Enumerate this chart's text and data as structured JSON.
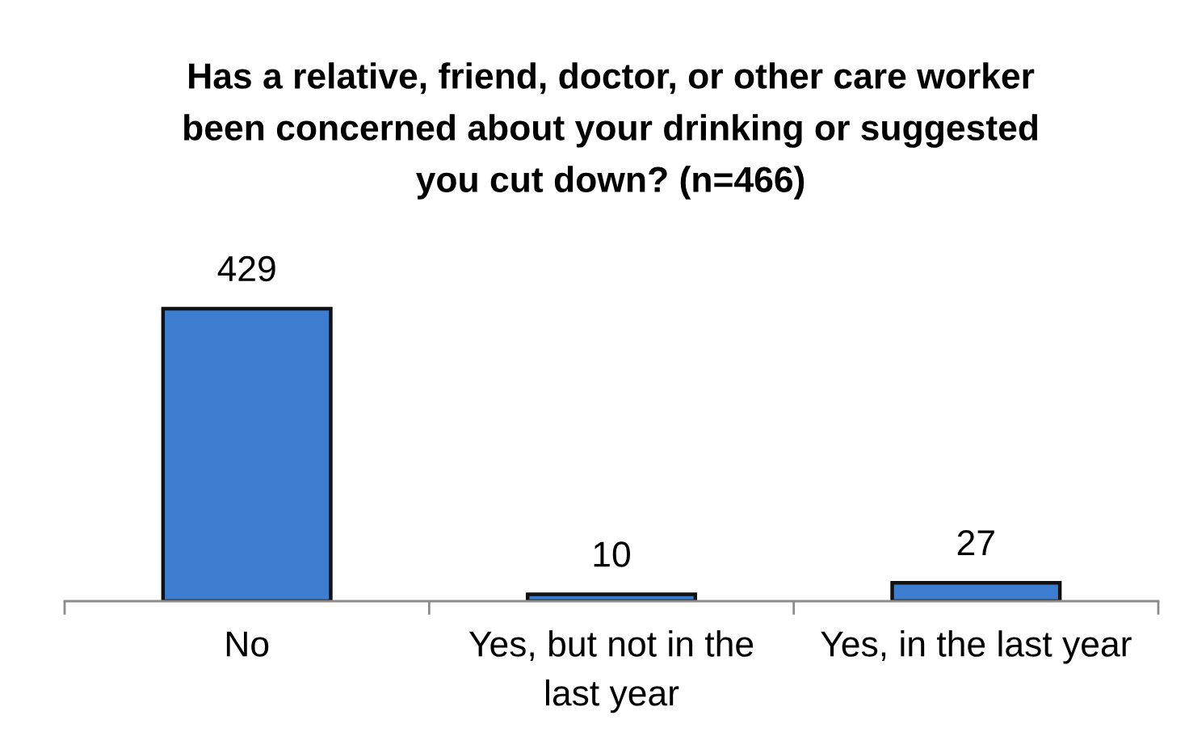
{
  "chart_data": {
    "type": "bar",
    "title": "Has a relative, friend, doctor, or other care worker been concerned about your drinking or suggested you cut down? (n=466)",
    "categories": [
      "No",
      "Yes, but not in the last year",
      "Yes, in the last year"
    ],
    "values": [
      429,
      10,
      27
    ],
    "color": "#3c7dd0",
    "data_labels": true,
    "tick_labels": "x"
  }
}
